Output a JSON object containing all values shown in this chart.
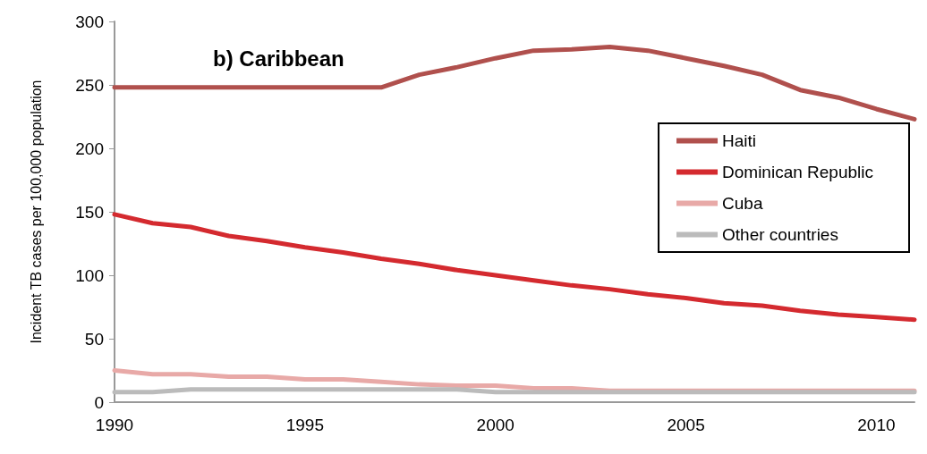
{
  "chart_data": {
    "type": "line",
    "title": "b) Caribbean",
    "ylabel": "Incident TB cases per 100,000 population",
    "x": [
      1990,
      1991,
      1992,
      1993,
      1994,
      1995,
      1996,
      1997,
      1998,
      1999,
      2000,
      2001,
      2002,
      2003,
      2004,
      2005,
      2006,
      2007,
      2008,
      2009,
      2010,
      2011
    ],
    "series": [
      {
        "name": "Haiti",
        "color": "#b0504d",
        "values": [
          248,
          248,
          248,
          248,
          248,
          248,
          248,
          248,
          258,
          264,
          271,
          277,
          278,
          280,
          277,
          271,
          265,
          258,
          246,
          240,
          231,
          223
        ]
      },
      {
        "name": "Dominican Republic",
        "color": "#d42a2f",
        "values": [
          148,
          141,
          138,
          131,
          127,
          122,
          118,
          113,
          109,
          104,
          100,
          96,
          92,
          89,
          85,
          82,
          78,
          76,
          72,
          69,
          67,
          65
        ]
      },
      {
        "name": "Cuba",
        "color": "#e8a9a7",
        "values": [
          25,
          22,
          22,
          20,
          20,
          18,
          18,
          16,
          14,
          13,
          13,
          11,
          11,
          9,
          9,
          9,
          9,
          9,
          9,
          9,
          9,
          9
        ]
      },
      {
        "name": "Other countries",
        "color": "#bbbbbb",
        "values": [
          8,
          8,
          10,
          10,
          10,
          10,
          10,
          10,
          10,
          10,
          8,
          8,
          8,
          8,
          8,
          8,
          8,
          8,
          8,
          8,
          8,
          8
        ]
      }
    ],
    "xlim": [
      1990,
      2011
    ],
    "xticks": [
      1990,
      1995,
      2000,
      2005,
      2010
    ],
    "ylim": [
      0,
      300
    ],
    "yticks": [
      0,
      50,
      100,
      150,
      200,
      250,
      300
    ],
    "grid": false,
    "legend": "top right",
    "marker": "none",
    "line_style": "solid"
  }
}
